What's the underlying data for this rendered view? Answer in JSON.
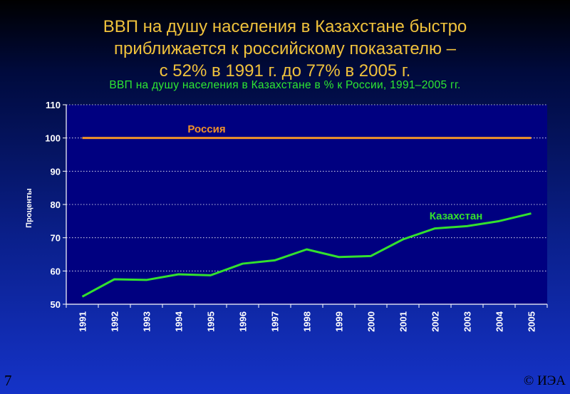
{
  "slide": {
    "title_lines": [
      "ВВП на душу населения в Казахстане быстро",
      "приближается к российскому показателю –",
      "с 52% в 1991 г. до 77% в 2005 г."
    ],
    "page_number": "7",
    "copyright": "© ИЭА"
  },
  "chart_data": {
    "type": "line",
    "title": "ВВП на душу населения в Казахстане в % к России, 1991–2005 гг.",
    "xlabel": "",
    "ylabel": "Проценты",
    "categories": [
      "1991",
      "1992",
      "1993",
      "1994",
      "1995",
      "1996",
      "1997",
      "1998",
      "1999",
      "2000",
      "2001",
      "2002",
      "2003",
      "2004",
      "2005"
    ],
    "ylim": [
      50,
      110
    ],
    "yticks": [
      50,
      60,
      70,
      80,
      90,
      100,
      110
    ],
    "grid": true,
    "series": [
      {
        "name": "Россия",
        "color": "#f0922a",
        "values": [
          100,
          100,
          100,
          100,
          100,
          100,
          100,
          100,
          100,
          100,
          100,
          100,
          100,
          100,
          100
        ]
      },
      {
        "name": "Казахстан",
        "color": "#33e02e",
        "values": [
          52.3,
          57.5,
          57.3,
          59,
          58.7,
          62.2,
          63.2,
          66.5,
          64.2,
          64.5,
          69.5,
          72.8,
          73.5,
          75,
          77.3
        ]
      }
    ]
  }
}
